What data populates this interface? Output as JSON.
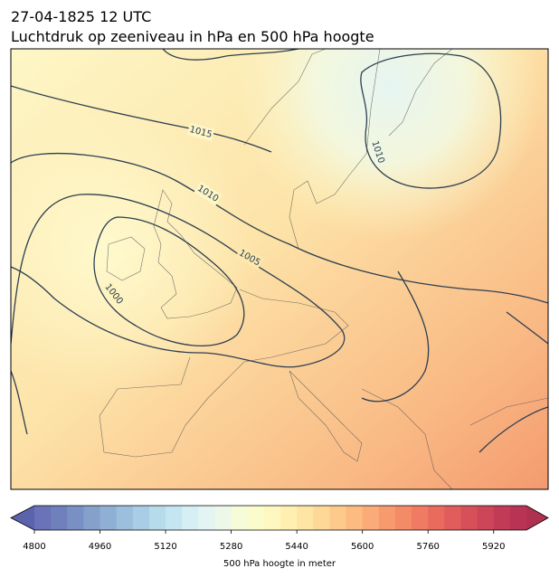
{
  "map": {
    "title_lines": [
      "27-04-1825 12 UTC",
      "Luchtdruk op zeeniveau in hPa en 500 hPa hoogte"
    ],
    "contour_labels": [
      1015,
      1010,
      1005,
      1000,
      1010
    ],
    "colorbar": {
      "label": "500 hPa hoogte in meter",
      "lim": [
        4800,
        6000
      ],
      "ticks": [
        4800,
        4960,
        5120,
        5280,
        5440,
        5600,
        5760,
        5920
      ],
      "colors": [
        "#6a72b8",
        "#6f80bd",
        "#7990c4",
        "#84a0cb",
        "#8fb0d4",
        "#9bbfdc",
        "#a8cde4",
        "#b6dbeb",
        "#c5e6f0",
        "#d5eff4",
        "#e4f4f2",
        "#eef8e8",
        "#f6fbd8",
        "#fbfccb",
        "#fef8c0",
        "#fff0b2",
        "#fee5a4",
        "#fed897",
        "#fdca8b",
        "#fcbb80",
        "#faab77",
        "#f79b6e",
        "#f48b67",
        "#ef7b62",
        "#e86b5e",
        "#e05d5c",
        "#d6505a",
        "#cc4558",
        "#c23b56",
        "#b83354"
      ],
      "extend_colors": [
        "#5c63ad",
        "#b0304f"
      ]
    }
  }
}
